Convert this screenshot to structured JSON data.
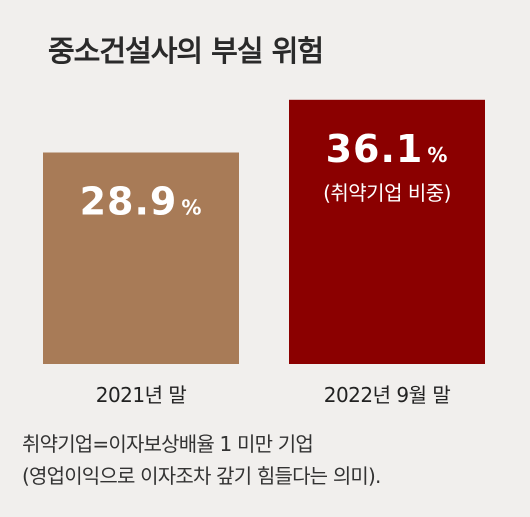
{
  "title": "중소건설사의 부실 위험",
  "chart_data": {
    "type": "bar",
    "title": "중소건설사의 부실 위험",
    "categories": [
      "2021년 말",
      "2022년 9월 말"
    ],
    "values": [
      28.9,
      36.1
    ],
    "value_labels": [
      "28.9",
      "36.1"
    ],
    "unit": "%",
    "annotations": [
      "(취약기업 비중)"
    ],
    "colors": [
      "#a87b57",
      "#8b0000"
    ],
    "ylim": [
      0,
      40
    ],
    "grid": false
  },
  "notes": [
    "취약기업=이자보상배율 1 미만 기업",
    "(영업이익으로 이자조차 갚기 힘들다는 의미)."
  ]
}
